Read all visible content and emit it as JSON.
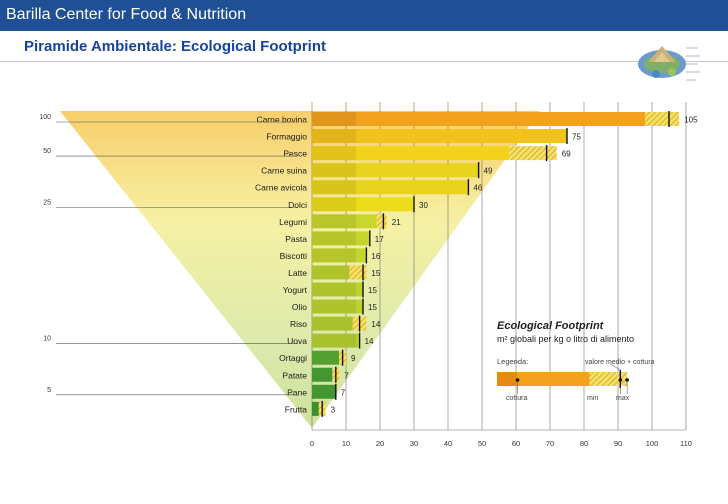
{
  "header": {
    "org": "Barilla Center for Food & Nutrition"
  },
  "page": {
    "title": "Piramide Ambientale: Ecological Footprint"
  },
  "logo": {
    "icon": "food-pyramid-globe-icon"
  },
  "colors": {
    "header_bg": "#1f4f94",
    "title_color": "#17449a",
    "orange": "#f2a21c",
    "dark_orange": "#e58a12",
    "yellow": "#f3d21c",
    "yellow_green": "#cfd62e",
    "green": "#9cc33a",
    "dark_green": "#3f9a32",
    "pyramid_top": "#f7c95a",
    "pyramid_mid": "#f5ef9a",
    "pyramid_low": "#c8df8f"
  },
  "chart_data": {
    "type": "bar",
    "orientation": "horizontal",
    "title": "Ecological Footprint",
    "subtitle": "m² globali per kg o litro di alimento",
    "x_range": [
      0,
      110
    ],
    "x_ticks": [
      0,
      10,
      20,
      30,
      40,
      50,
      60,
      70,
      80,
      90,
      100,
      110
    ],
    "grid": true,
    "categories": [
      "Carne bovina",
      "Formaggio",
      "Pesce",
      "Carne suina",
      "Carne avicola",
      "Dolci",
      "Legumi",
      "Pasta",
      "Biscotti",
      "Latte",
      "Yogurt",
      "Olio",
      "Riso",
      "Uova",
      "Ortaggi",
      "Patate",
      "Pane",
      "Frutta"
    ],
    "values": [
      105,
      75,
      69,
      49,
      46,
      30,
      21,
      17,
      16,
      15,
      15,
      15,
      14,
      14,
      9,
      7,
      7,
      3
    ],
    "min_values": [
      98,
      75,
      58,
      49,
      46,
      30,
      19,
      17,
      16,
      11,
      15,
      15,
      12,
      14,
      8,
      6,
      7,
      2
    ],
    "max_values": [
      108,
      75,
      72,
      49,
      46,
      30,
      22,
      17,
      16,
      16,
      15,
      15,
      16,
      14,
      10,
      8,
      7,
      4
    ],
    "colors": [
      "#f2a21c",
      "#f2c21c",
      "#f3d21c",
      "#e8d41f",
      "#e8d41f",
      "#ecdc1c",
      "#c8d62e",
      "#c4d52e",
      "#c4d52e",
      "#bcd230",
      "#bcd230",
      "#bcd230",
      "#b6d032",
      "#b6d032",
      "#5aac36",
      "#4aa234",
      "#4aa234",
      "#3f9a32"
    ],
    "pyramid_scale": {
      "labels": [
        "100",
        "50",
        "25",
        "10",
        "5"
      ],
      "anchors": [
        "Carne bovina",
        "Pesce",
        "Dolci",
        "Uova",
        "Pane"
      ]
    },
    "legend": {
      "title": "Ecological Footprint",
      "subtitle": "m² globali per kg o litro di alimento",
      "legenda_label": "Legenda:",
      "value_label": "valore medio + cottura",
      "cooking_label": "cottura",
      "min_label": "min",
      "max_label": "max",
      "example_range": [
        0,
        40
      ],
      "example_marks": [
        6,
        27,
        36,
        38
      ]
    }
  }
}
